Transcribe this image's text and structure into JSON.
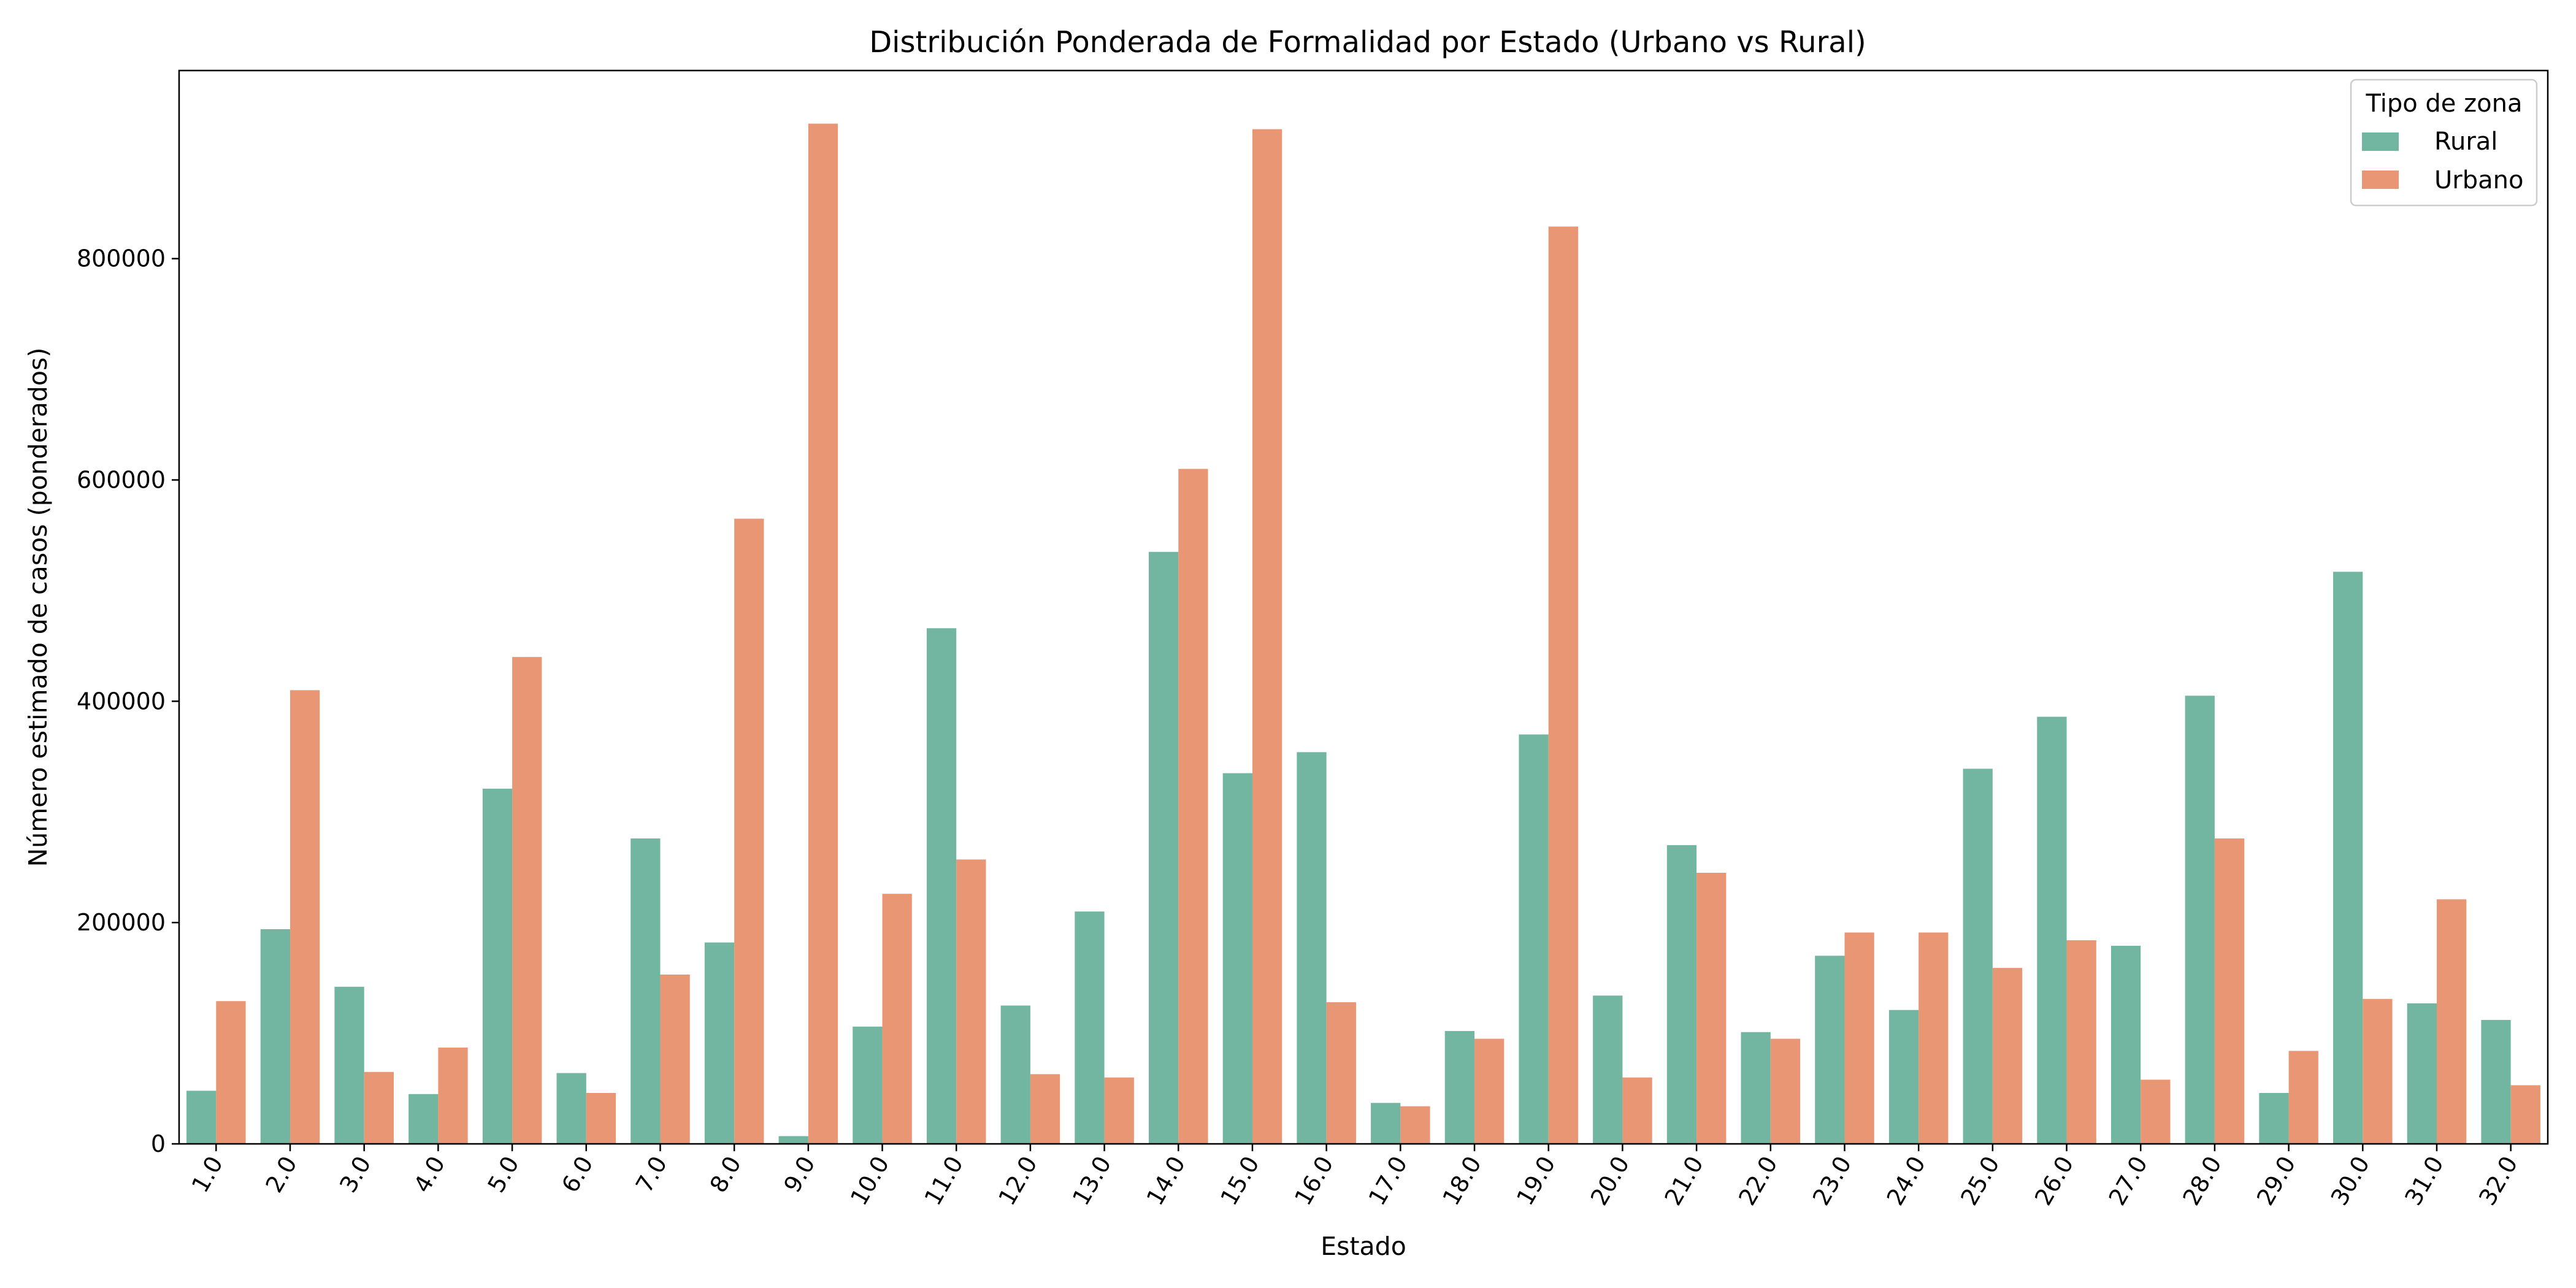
{
  "chart_data": {
    "type": "bar",
    "title": "Distribución Ponderada de Formalidad por Estado (Urbano vs Rural)",
    "xlabel": "Estado",
    "ylabel": "Número estimado de casos (ponderados)",
    "ylim": [
      0,
      970000
    ],
    "yticks": [
      0,
      200000,
      400000,
      600000,
      800000
    ],
    "categories": [
      "1.0",
      "2.0",
      "3.0",
      "4.0",
      "5.0",
      "6.0",
      "7.0",
      "8.0",
      "9.0",
      "10.0",
      "11.0",
      "12.0",
      "13.0",
      "14.0",
      "15.0",
      "16.0",
      "17.0",
      "18.0",
      "19.0",
      "20.0",
      "21.0",
      "22.0",
      "23.0",
      "24.0",
      "25.0",
      "26.0",
      "27.0",
      "28.0",
      "29.0",
      "30.0",
      "31.0",
      "32.0"
    ],
    "series": [
      {
        "name": "Rural",
        "color": "#72b6a1",
        "values": [
          48000,
          194000,
          142000,
          45000,
          321000,
          64000,
          276000,
          182000,
          7000,
          106000,
          466000,
          125000,
          210000,
          535000,
          335000,
          354000,
          37000,
          102000,
          370000,
          134000,
          270000,
          101000,
          170000,
          121000,
          339000,
          386000,
          179000,
          405000,
          46000,
          517000,
          127000,
          112000
        ]
      },
      {
        "name": "Urbano",
        "color": "#e99675",
        "values": [
          129000,
          410000,
          65000,
          87000,
          440000,
          46000,
          153000,
          565000,
          922000,
          226000,
          257000,
          63000,
          60000,
          610000,
          917000,
          128000,
          34000,
          95000,
          829000,
          60000,
          245000,
          95000,
          191000,
          191000,
          159000,
          184000,
          58000,
          276000,
          84000,
          131000,
          221000,
          53000
        ]
      }
    ],
    "legend": {
      "title": "Tipo de zona",
      "position": "top-right"
    },
    "grid": false
  }
}
